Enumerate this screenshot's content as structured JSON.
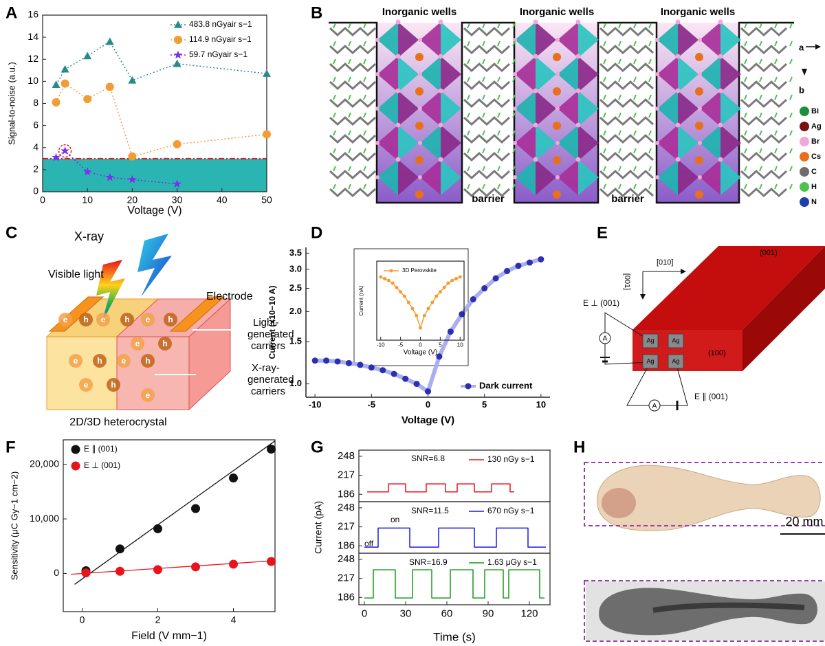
{
  "panel_labels": [
    "A",
    "B",
    "C",
    "D",
    "E",
    "F",
    "G",
    "H"
  ],
  "chart_data": [
    {
      "type": "line",
      "xlabel": "Voltage (V)",
      "ylabel": "Signal-to-noise (a.u.)",
      "xlim": [
        0,
        50
      ],
      "ylim": [
        0,
        16
      ],
      "xticks": [
        0,
        10,
        20,
        30,
        40,
        50
      ],
      "yticks": [
        0,
        2,
        4,
        6,
        8,
        10,
        12,
        14,
        16
      ],
      "threshold": 3,
      "threshold_color": "#2bb5b2",
      "legend": "upper right",
      "series": [
        {
          "name": "483.8 nGyair s−1",
          "color": "#2a8a8a",
          "marker": "triangle",
          "line_style": "dotted",
          "x": [
            3,
            5,
            10,
            15,
            20,
            30,
            50
          ],
          "values": [
            9.7,
            11.1,
            12.3,
            13.6,
            10.1,
            11.6,
            10.7
          ]
        },
        {
          "name": "114.9 nGyair s−1",
          "color": "#f39c33",
          "marker": "circle",
          "line_style": "dotted",
          "x": [
            3,
            5,
            10,
            15,
            20,
            30,
            50
          ],
          "values": [
            8.1,
            9.8,
            8.4,
            9.5,
            3.2,
            4.3,
            5.2
          ]
        },
        {
          "name": "59.7 nGyair s−1",
          "color": "#7a2ef0",
          "marker": "star",
          "line_style": "dotted",
          "x": [
            3,
            5,
            10,
            15,
            20,
            30
          ],
          "values": [
            3.1,
            3.7,
            1.8,
            1.3,
            1.1,
            0.7
          ]
        }
      ]
    },
    {
      "type": "line",
      "xlabel": "Voltage (V)",
      "ylabel": "Current (×10−10 A)",
      "log_y": true,
      "xlim": [
        -10.8,
        10.8
      ],
      "ylim": [
        0.88,
        3.7
      ],
      "xticks": [
        -10,
        -5,
        0,
        5,
        10
      ],
      "yticks": [
        {
          "value": 1,
          "label": "1.0"
        },
        1.5,
        {
          "value": 2,
          "label": "2.0"
        },
        2.5,
        {
          "value": 3,
          "label": "3.0"
        },
        3.5
      ],
      "legend": "lower right",
      "series": [
        {
          "name": "Dark current",
          "color": "#2b2fb0",
          "marker": "circle",
          "line_style": "solid",
          "line_color": "#aab0ee",
          "line_width": 6,
          "x": [
            -10,
            -9,
            -8,
            -7,
            -6,
            -5,
            -4,
            -3,
            -2,
            -1,
            0,
            1,
            2,
            3,
            4,
            5,
            6,
            7,
            8,
            9,
            10
          ],
          "values": [
            1.25,
            1.25,
            1.24,
            1.22,
            1.2,
            1.17,
            1.14,
            1.1,
            1.05,
            1.0,
            0.93,
            1.3,
            1.65,
            1.95,
            2.25,
            2.5,
            2.75,
            2.95,
            3.1,
            3.2,
            3.3
          ]
        }
      ]
    },
    {
      "type": "line",
      "xlabel": "Voltage (V)",
      "ylabel": "Current (nA)",
      "xlim": [
        -11,
        11
      ],
      "ylim": [
        0,
        9
      ],
      "xticks": [
        -10,
        -5,
        0,
        5,
        10
      ],
      "legend": "upper left",
      "series": [
        {
          "name": "3D Perovskite",
          "color": "#f39c33",
          "marker": "circle",
          "line_style": "solid",
          "x": [
            -10,
            -9,
            -8,
            -7,
            -6,
            -5,
            -4,
            -3,
            -2,
            -1,
            0,
            1,
            2,
            3,
            4,
            5,
            6,
            7,
            8,
            9,
            10
          ],
          "values": [
            7.2,
            7.0,
            6.8,
            6.5,
            6.0,
            5.5,
            5.0,
            4.3,
            3.6,
            2.8,
            1.4,
            2.8,
            3.6,
            4.3,
            5.0,
            5.5,
            6.0,
            6.5,
            6.8,
            7.0,
            7.2
          ]
        }
      ]
    },
    {
      "type": "scatter",
      "xlabel": "Field (V mm−1)",
      "ylabel": "Sensitivity (μC Gy−1 cm−2)",
      "xlim": [
        -0.5,
        5.1
      ],
      "ylim": [
        -7000,
        24500
      ],
      "xticks": [
        0,
        2,
        4
      ],
      "yticks": [
        0,
        {
          "value": 10000,
          "label": "10,000"
        },
        {
          "value": 20000,
          "label": "20,000"
        }
      ],
      "legend": "upper left",
      "series": [
        {
          "name": "E ∥ (001)",
          "color": "#111111",
          "marker": "circle",
          "line_style": "none",
          "x": [
            0.1,
            1,
            2,
            3,
            4,
            5
          ],
          "values": [
            500,
            4500,
            8200,
            11900,
            17500,
            22800
          ],
          "fit": {
            "x": [
              -0.2,
              5.1
            ],
            "values": [
              -2000,
              24300
            ]
          }
        },
        {
          "name": "E ⊥ (001)",
          "color": "#e8141b",
          "marker": "circle",
          "line_style": "none",
          "x": [
            0.1,
            1,
            2,
            3,
            4,
            5
          ],
          "values": [
            100,
            400,
            700,
            1200,
            1700,
            2200
          ],
          "fit": {
            "x": [
              -0.3,
              5.1
            ],
            "values": [
              -150,
              2350
            ]
          }
        }
      ]
    },
    {
      "type": "line",
      "xlim": [
        -4,
        135
      ],
      "ylim": [
        174,
        258
      ],
      "yticks": [
        186,
        217,
        248
      ],
      "legend": "upper right",
      "annotations": [
        "SNR=6.8"
      ],
      "series": [
        {
          "name": "130 nGy s−1",
          "color": "#e8141b",
          "marker": "none",
          "line_style": "solid",
          "x": [
            2,
            17.5,
            17.5,
            30,
            30,
            45,
            45,
            59,
            59,
            67.5,
            67.5,
            80,
            80,
            92.5,
            92.5,
            106,
            106,
            109
          ],
          "values": [
            190,
            190,
            203,
            203,
            190,
            190,
            203,
            203,
            190,
            190,
            203,
            203,
            190,
            190,
            203,
            203,
            190,
            190
          ]
        }
      ]
    },
    {
      "type": "line",
      "ylabel": "Current (pA)",
      "xlim": [
        -4,
        135
      ],
      "ylim": [
        174,
        258
      ],
      "yticks": [
        186,
        217,
        248
      ],
      "legend": "upper right",
      "annotations": [
        "SNR=11.5",
        "on",
        "off"
      ],
      "series": [
        {
          "name": "670 nGy s−1",
          "color": "#1a1ae6",
          "marker": "none",
          "line_style": "solid",
          "x": [
            0,
            10,
            10,
            33,
            33,
            54,
            54,
            80,
            80,
            96,
            96,
            119,
            119,
            132
          ],
          "values": [
            184,
            184,
            215,
            215,
            184,
            184,
            215,
            215,
            184,
            184,
            215,
            215,
            184,
            184
          ]
        }
      ]
    },
    {
      "type": "line",
      "xlabel": "Time (s)",
      "xlim": [
        -4,
        135
      ],
      "ylim": [
        174,
        258
      ],
      "xticks": [
        0,
        30,
        60,
        90,
        120
      ],
      "yticks": [
        186,
        217,
        248
      ],
      "legend": "upper right",
      "annotations": [
        "SNR=16.9"
      ],
      "series": [
        {
          "name": "1.63 μGy s−1",
          "color": "#1a9a1a",
          "marker": "none",
          "line_style": "solid",
          "x": [
            0,
            6.5,
            6.5,
            22.5,
            22.5,
            35,
            35,
            49,
            49,
            62.5,
            62.5,
            79,
            79,
            87.5,
            87.5,
            101,
            101,
            105,
            105,
            127.5,
            127.5,
            131
          ],
          "values": [
            185,
            185,
            231,
            231,
            185,
            185,
            231,
            231,
            185,
            185,
            231,
            231,
            185,
            185,
            231,
            231,
            185,
            185,
            231,
            231,
            185,
            185
          ]
        }
      ]
    }
  ],
  "panel_b": {
    "wells": [
      "Inorganic wells",
      "Inorganic wells",
      "Inorganic wells"
    ],
    "barriers": [
      "barrier",
      "barrier"
    ],
    "axes": [
      "a",
      "b"
    ],
    "legend": [
      {
        "symbol": "Bi",
        "color": "#1f8f3a"
      },
      {
        "symbol": "Ag",
        "color": "#7a1010"
      },
      {
        "symbol": "Br",
        "color": "#f2a7d8"
      },
      {
        "symbol": "Cs",
        "color": "#e8701a"
      },
      {
        "symbol": "C",
        "color": "#6e6e6e"
      },
      {
        "symbol": "H",
        "color": "#4cc24c"
      },
      {
        "symbol": "N",
        "color": "#1f3fa8"
      }
    ]
  },
  "panel_c": {
    "xray": "X-ray",
    "visible": "Visible light",
    "electrode": "Electrode",
    "light_carriers": [
      "Light-",
      "generated",
      "carriers"
    ],
    "xray_carriers": [
      "X-ray-",
      "generated",
      "carriers"
    ],
    "caption": "2D/3D heterocrystal",
    "carriers": [
      "e",
      "h"
    ]
  },
  "panel_e": {
    "top": "(001)",
    "dir1": "[010]",
    "dir2": "[001]",
    "front": "(100)",
    "perp": "E ⊥ (001)",
    "par": "E ∥ (001)",
    "electrode": "Ag",
    "meter": "A"
  },
  "panel_h": {
    "scale": "20 mm"
  }
}
